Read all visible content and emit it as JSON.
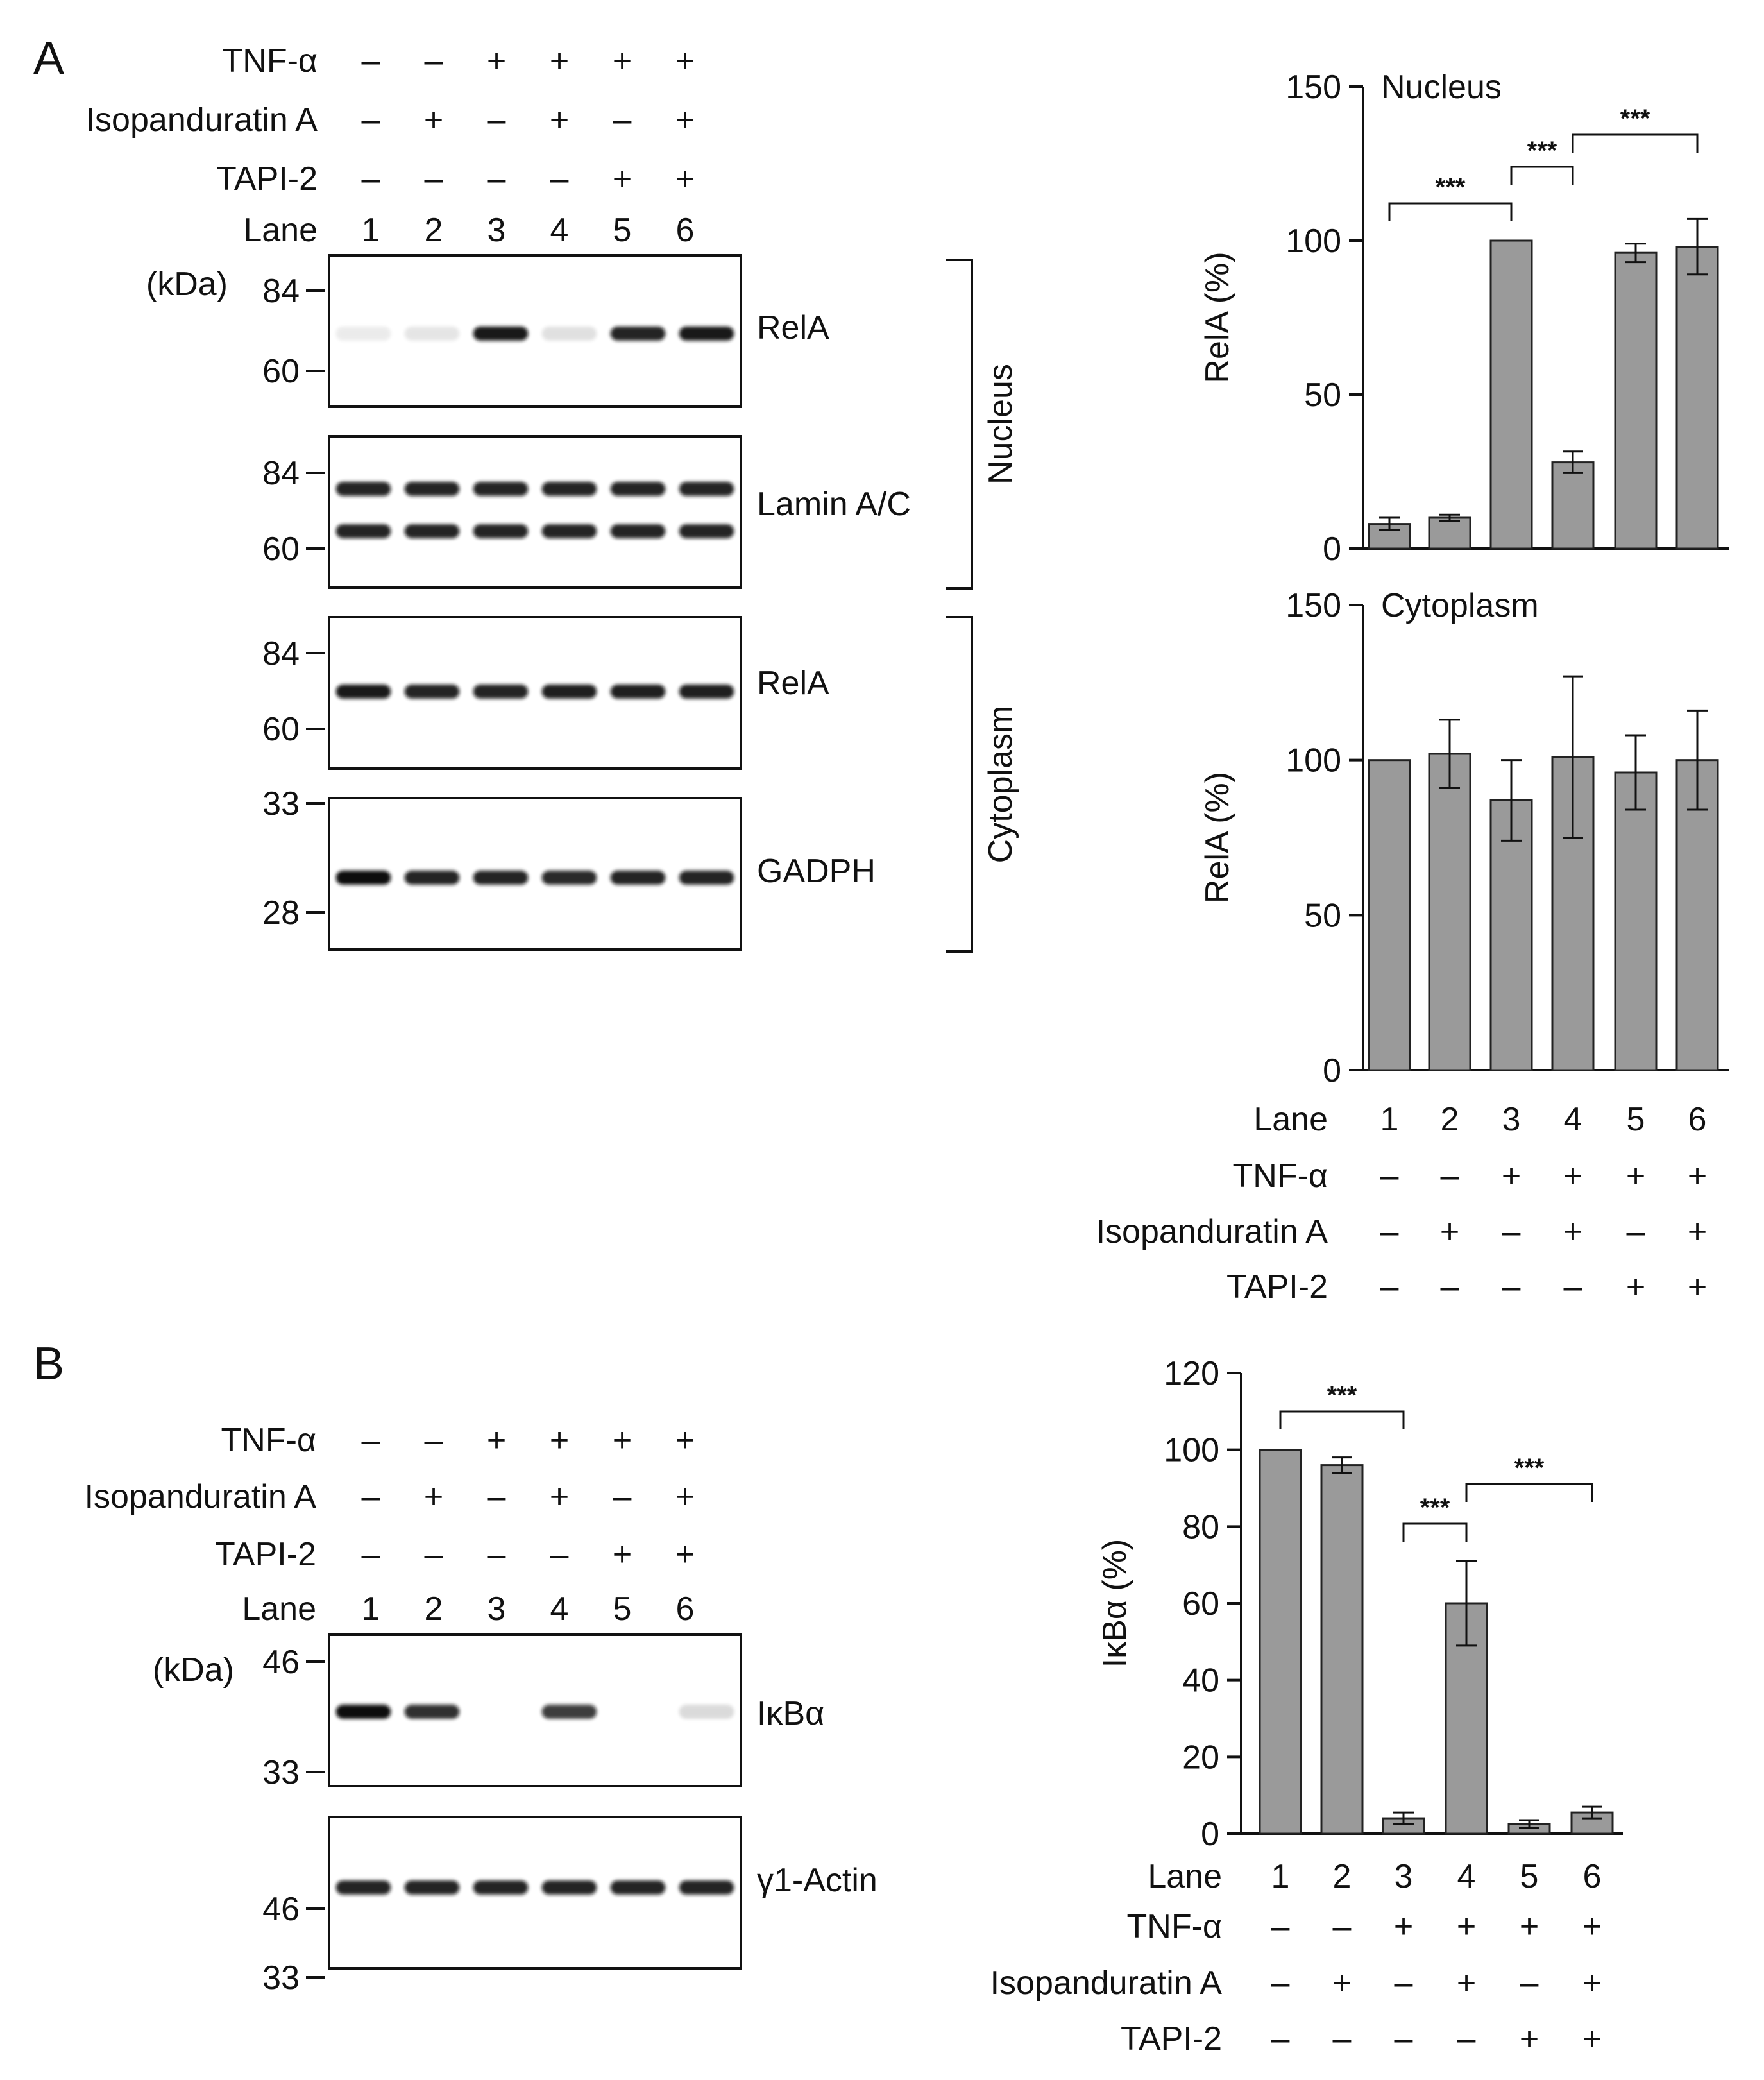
{
  "panels": {
    "a": "A",
    "b": "B"
  },
  "treatments": {
    "row_labels": [
      "TNF-α",
      "Isopanduratin A",
      "TAPI-2"
    ],
    "lane_label": "Lane",
    "lanes": [
      "1",
      "2",
      "3",
      "4",
      "5",
      "6"
    ],
    "tnf": [
      "–",
      "–",
      "+",
      "+",
      "+",
      "+"
    ],
    "iso": [
      "–",
      "+",
      "–",
      "+",
      "–",
      "+"
    ],
    "tapi": [
      "–",
      "–",
      "–",
      "–",
      "+",
      "+"
    ]
  },
  "blots_a": {
    "kda": "(kDa)",
    "fractions": [
      "Nucleus",
      "Cytoplasm"
    ],
    "strips": [
      {
        "label": "RelA",
        "markers": [
          "84",
          "60"
        ],
        "intensity": [
          0.08,
          0.1,
          0.95,
          0.12,
          0.9,
          0.95
        ],
        "bands": 1
      },
      {
        "label": "Lamin A/C",
        "markers": [
          "84",
          "60"
        ],
        "intensity": [
          0.9,
          0.9,
          0.9,
          0.9,
          0.9,
          0.9
        ],
        "bands": 2
      },
      {
        "label": "RelA",
        "markers": [
          "84",
          "60"
        ],
        "intensity": [
          0.95,
          0.9,
          0.9,
          0.92,
          0.92,
          0.92
        ],
        "bands": 1
      },
      {
        "label": "GADPH",
        "markers": [
          "33",
          "28"
        ],
        "intensity": [
          1.0,
          0.9,
          0.9,
          0.88,
          0.9,
          0.9
        ],
        "bands": 1
      }
    ]
  },
  "blots_b": {
    "kda": "(kDa)",
    "strips": [
      {
        "label": "IκBα",
        "markers": [
          "46",
          "33"
        ],
        "intensity": [
          1.0,
          0.85,
          0.0,
          0.8,
          0.0,
          0.15
        ],
        "bands": 1
      },
      {
        "label": "γ1-Actin",
        "markers": [
          "46",
          "33"
        ],
        "intensity": [
          0.9,
          0.9,
          0.9,
          0.9,
          0.9,
          0.9
        ],
        "bands": 1
      }
    ]
  },
  "chart_data": [
    {
      "type": "bar",
      "title": "Nucleus",
      "ylabel": "RelA (%)",
      "categories": [
        "1",
        "2",
        "3",
        "4",
        "5",
        "6"
      ],
      "values": [
        8,
        10,
        100,
        28,
        96,
        98
      ],
      "errors": [
        2,
        1,
        0,
        3.5,
        3,
        9
      ],
      "ylim": [
        0,
        150
      ],
      "yticks": [
        0,
        50,
        100,
        150
      ],
      "significance": [
        {
          "from": "1",
          "to": "3",
          "label": "***"
        },
        {
          "from": "3",
          "to": "4",
          "label": "***"
        },
        {
          "from": "4",
          "to": "6",
          "label": "***"
        }
      ]
    },
    {
      "type": "bar",
      "title": "Cytoplasm",
      "ylabel": "RelA (%)",
      "categories": [
        "1",
        "2",
        "3",
        "4",
        "5",
        "6"
      ],
      "values": [
        100,
        102,
        87,
        101,
        96,
        100
      ],
      "errors": [
        0,
        11,
        13,
        26,
        12,
        16
      ],
      "ylim": [
        0,
        150
      ],
      "yticks": [
        0,
        50,
        100,
        150
      ],
      "significance": []
    },
    {
      "type": "bar",
      "title": "",
      "ylabel": "IκBα (%)",
      "categories": [
        "1",
        "2",
        "3",
        "4",
        "5",
        "6"
      ],
      "values": [
        100,
        96,
        4,
        60,
        2.5,
        5.5
      ],
      "errors": [
        0,
        2,
        1.5,
        11,
        1,
        1.5
      ],
      "ylim": [
        0,
        120
      ],
      "yticks": [
        0,
        20,
        40,
        60,
        80,
        100,
        120
      ],
      "significance": [
        {
          "from": "1",
          "to": "3",
          "label": "***"
        },
        {
          "from": "3",
          "to": "4",
          "label": "***"
        },
        {
          "from": "4",
          "to": "6",
          "label": "***"
        }
      ]
    }
  ]
}
